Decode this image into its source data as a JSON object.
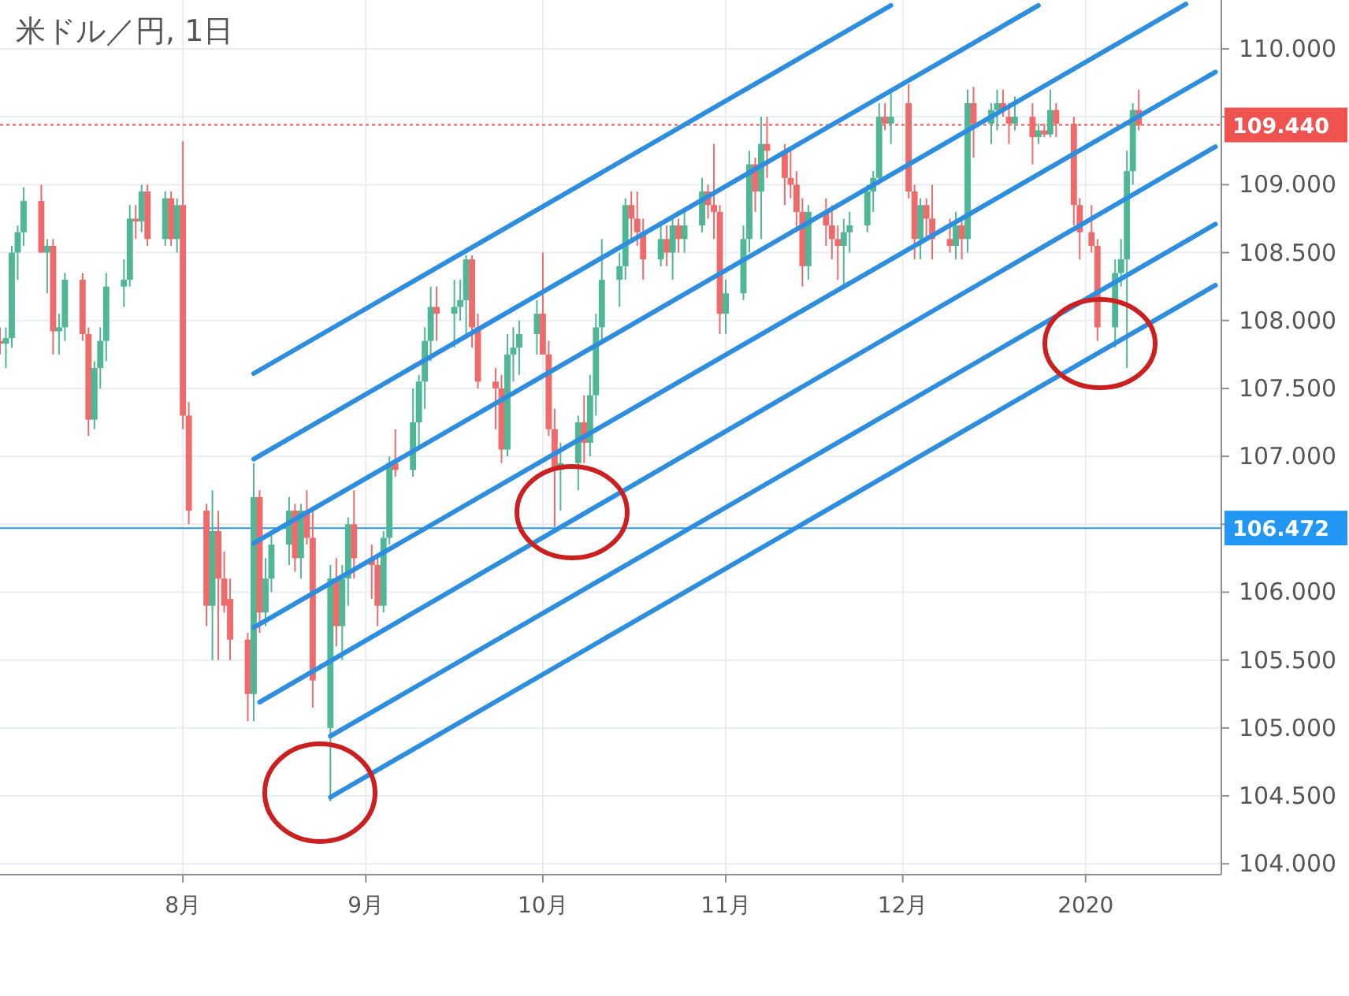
{
  "chart_data": {
    "type": "candlestick",
    "title": "米ドル／円, 1日",
    "x": [
      "2019-07-01",
      "2019-07-02",
      "2019-07-03",
      "2019-07-04",
      "2019-07-05",
      "2019-07-08",
      "2019-07-09",
      "2019-07-10",
      "2019-07-11",
      "2019-07-12",
      "2019-07-15",
      "2019-07-16",
      "2019-07-17",
      "2019-07-18",
      "2019-07-19",
      "2019-07-22",
      "2019-07-23",
      "2019-07-24",
      "2019-07-25",
      "2019-07-26",
      "2019-07-29",
      "2019-07-30",
      "2019-07-31",
      "2019-08-01",
      "2019-08-02",
      "2019-08-05",
      "2019-08-06",
      "2019-08-07",
      "2019-08-08",
      "2019-08-09",
      "2019-08-12",
      "2019-08-13",
      "2019-08-14",
      "2019-08-15",
      "2019-08-16",
      "2019-08-19",
      "2019-08-20",
      "2019-08-21",
      "2019-08-22",
      "2019-08-23",
      "2019-08-26",
      "2019-08-27",
      "2019-08-28",
      "2019-08-29",
      "2019-08-30",
      "2019-09-02",
      "2019-09-03",
      "2019-09-04",
      "2019-09-05",
      "2019-09-06",
      "2019-09-09",
      "2019-09-10",
      "2019-09-11",
      "2019-09-12",
      "2019-09-13",
      "2019-09-16",
      "2019-09-17",
      "2019-09-18",
      "2019-09-19",
      "2019-09-20",
      "2019-09-23",
      "2019-09-24",
      "2019-09-25",
      "2019-09-26",
      "2019-09-27",
      "2019-09-30",
      "2019-10-01",
      "2019-10-02",
      "2019-10-03",
      "2019-10-04",
      "2019-10-07",
      "2019-10-08",
      "2019-10-09",
      "2019-10-10",
      "2019-10-11",
      "2019-10-14",
      "2019-10-15",
      "2019-10-16",
      "2019-10-17",
      "2019-10-18",
      "2019-10-21",
      "2019-10-22",
      "2019-10-23",
      "2019-10-24",
      "2019-10-25",
      "2019-10-28",
      "2019-10-29",
      "2019-10-30",
      "2019-10-31",
      "2019-11-01",
      "2019-11-04",
      "2019-11-05",
      "2019-11-06",
      "2019-11-07",
      "2019-11-08",
      "2019-11-11",
      "2019-11-12",
      "2019-11-13",
      "2019-11-14",
      "2019-11-15",
      "2019-11-18",
      "2019-11-19",
      "2019-11-20",
      "2019-11-21",
      "2019-11-22",
      "2019-11-25",
      "2019-11-26",
      "2019-11-27",
      "2019-11-28",
      "2019-11-29",
      "2019-12-02",
      "2019-12-03",
      "2019-12-04",
      "2019-12-05",
      "2019-12-06",
      "2019-12-09",
      "2019-12-10",
      "2019-12-11",
      "2019-12-12",
      "2019-12-13",
      "2019-12-16",
      "2019-12-17",
      "2019-12-18",
      "2019-12-19",
      "2019-12-20",
      "2019-12-23",
      "2019-12-24",
      "2019-12-25",
      "2019-12-26",
      "2019-12-27",
      "2019-12-30",
      "2019-12-31",
      "2020-01-02",
      "2020-01-03",
      "2020-01-06",
      "2020-01-07",
      "2020-01-08",
      "2020-01-09",
      "2020-01-10"
    ],
    "ohlc": [
      [
        107.85,
        107.95,
        107.75,
        107.83
      ],
      [
        107.83,
        107.95,
        107.65,
        107.87
      ],
      [
        107.87,
        108.55,
        107.8,
        108.5
      ],
      [
        108.5,
        108.7,
        108.3,
        108.65
      ],
      [
        108.65,
        108.98,
        108.55,
        108.88
      ],
      [
        108.88,
        109.0,
        108.5,
        108.5
      ],
      [
        108.5,
        108.6,
        108.2,
        108.55
      ],
      [
        108.55,
        108.6,
        107.75,
        107.92
      ],
      [
        107.92,
        108.05,
        107.75,
        107.95
      ],
      [
        107.95,
        108.35,
        107.85,
        108.3
      ],
      [
        108.3,
        108.35,
        107.85,
        107.9
      ],
      [
        107.9,
        107.95,
        107.15,
        107.27
      ],
      [
        107.27,
        107.7,
        107.2,
        107.65
      ],
      [
        107.65,
        107.95,
        107.5,
        107.85
      ],
      [
        107.85,
        108.35,
        107.7,
        108.25
      ],
      [
        108.25,
        108.45,
        108.1,
        108.3
      ],
      [
        108.3,
        108.85,
        108.25,
        108.75
      ],
      [
        108.75,
        108.85,
        108.6,
        108.73
      ],
      [
        108.73,
        109.0,
        108.65,
        108.95
      ],
      [
        108.95,
        109.0,
        108.55,
        108.6
      ],
      [
        108.6,
        108.95,
        108.55,
        108.9
      ],
      [
        108.9,
        108.95,
        108.55,
        108.6
      ],
      [
        108.6,
        108.9,
        108.5,
        108.85
      ],
      [
        108.85,
        109.32,
        107.2,
        107.3
      ],
      [
        107.3,
        107.4,
        106.5,
        106.6
      ],
      [
        106.6,
        106.65,
        105.75,
        105.9
      ],
      [
        105.9,
        106.75,
        105.5,
        106.45
      ],
      [
        106.45,
        106.6,
        105.5,
        106.1
      ],
      [
        106.1,
        106.3,
        105.85,
        105.9
      ],
      [
        105.95,
        106.1,
        105.5,
        105.65
      ],
      [
        105.65,
        105.7,
        105.05,
        105.25
      ],
      [
        105.25,
        106.95,
        105.05,
        106.7
      ],
      [
        106.7,
        106.75,
        105.7,
        105.85
      ],
      [
        105.85,
        106.25,
        105.75,
        106.1
      ],
      [
        106.1,
        106.45,
        106.0,
        106.35
      ],
      [
        106.35,
        106.7,
        106.2,
        106.6
      ],
      [
        106.6,
        106.65,
        106.15,
        106.25
      ],
      [
        106.25,
        106.65,
        106.1,
        106.6
      ],
      [
        106.6,
        106.75,
        106.35,
        106.4
      ],
      [
        106.4,
        106.6,
        105.15,
        105.35
      ],
      [
        105.0,
        106.2,
        104.46,
        106.1
      ],
      [
        106.1,
        106.25,
        105.6,
        105.75
      ],
      [
        105.75,
        106.2,
        105.5,
        106.1
      ],
      [
        106.1,
        106.55,
        105.9,
        106.5
      ],
      [
        106.5,
        106.75,
        106.1,
        106.25
      ],
      [
        106.25,
        106.35,
        105.95,
        106.2
      ],
      [
        106.2,
        106.25,
        105.75,
        105.9
      ],
      [
        105.9,
        106.45,
        105.85,
        106.4
      ],
      [
        106.4,
        107.0,
        106.35,
        106.95
      ],
      [
        106.95,
        107.2,
        106.85,
        106.9
      ],
      [
        106.9,
        107.5,
        106.85,
        107.25
      ],
      [
        107.25,
        107.6,
        107.05,
        107.55
      ],
      [
        107.55,
        107.95,
        107.35,
        107.85
      ],
      [
        107.85,
        108.25,
        107.7,
        108.1
      ],
      [
        108.1,
        108.25,
        107.85,
        108.05
      ],
      [
        108.05,
        108.3,
        107.8,
        108.1
      ],
      [
        108.1,
        108.3,
        108.0,
        108.15
      ],
      [
        108.15,
        108.48,
        107.9,
        108.45
      ],
      [
        108.45,
        108.48,
        107.8,
        107.95
      ],
      [
        107.95,
        108.05,
        107.5,
        107.55
      ],
      [
        107.55,
        107.65,
        107.2,
        107.5
      ],
      [
        107.5,
        107.6,
        106.95,
        107.05
      ],
      [
        107.05,
        107.9,
        107.0,
        107.75
      ],
      [
        107.75,
        107.95,
        107.55,
        107.8
      ],
      [
        107.8,
        108.0,
        107.6,
        107.9
      ],
      [
        107.9,
        108.15,
        107.75,
        108.05
      ],
      [
        108.05,
        108.5,
        107.75,
        107.75
      ],
      [
        107.75,
        107.85,
        107.15,
        107.2
      ],
      [
        107.2,
        107.35,
        106.48,
        106.9
      ],
      [
        106.9,
        107.1,
        106.6,
        106.95
      ],
      [
        106.95,
        107.3,
        106.75,
        107.25
      ],
      [
        107.25,
        107.45,
        106.95,
        107.1
      ],
      [
        107.1,
        107.6,
        107.0,
        107.45
      ],
      [
        107.45,
        108.05,
        107.3,
        107.95
      ],
      [
        107.95,
        108.6,
        107.85,
        108.3
      ],
      [
        108.3,
        108.5,
        108.1,
        108.4
      ],
      [
        108.4,
        108.9,
        108.3,
        108.85
      ],
      [
        108.85,
        108.95,
        108.6,
        108.75
      ],
      [
        108.75,
        108.95,
        108.55,
        108.65
      ],
      [
        108.65,
        108.75,
        108.3,
        108.45
      ],
      [
        108.45,
        108.7,
        108.4,
        108.6
      ],
      [
        108.6,
        108.7,
        108.4,
        108.5
      ],
      [
        108.5,
        108.75,
        108.3,
        108.7
      ],
      [
        108.7,
        108.75,
        108.5,
        108.6
      ],
      [
        108.6,
        108.8,
        108.5,
        108.7
      ],
      [
        108.7,
        109.05,
        108.65,
        108.95
      ],
      [
        108.95,
        109.0,
        108.75,
        108.85
      ],
      [
        108.85,
        109.3,
        108.6,
        108.8
      ],
      [
        108.8,
        108.85,
        107.9,
        108.05
      ],
      [
        108.05,
        108.3,
        107.9,
        108.2
      ],
      [
        108.2,
        108.7,
        108.15,
        108.6
      ],
      [
        108.6,
        109.25,
        108.5,
        109.15
      ],
      [
        109.15,
        109.2,
        108.8,
        108.95
      ],
      [
        108.95,
        109.5,
        108.6,
        109.3
      ],
      [
        109.3,
        109.5,
        109.05,
        109.25
      ],
      [
        109.25,
        109.3,
        108.85,
        109.05
      ],
      [
        109.05,
        109.25,
        108.9,
        109.0
      ],
      [
        109.0,
        109.1,
        108.65,
        108.8
      ],
      [
        108.8,
        108.9,
        108.25,
        108.4
      ],
      [
        108.4,
        108.85,
        108.3,
        108.8
      ],
      [
        108.8,
        108.9,
        108.55,
        108.7
      ],
      [
        108.7,
        108.85,
        108.45,
        108.6
      ],
      [
        108.6,
        108.7,
        108.3,
        108.55
      ],
      [
        108.55,
        108.75,
        108.25,
        108.65
      ],
      [
        108.65,
        108.8,
        108.5,
        108.7
      ],
      [
        108.7,
        109.0,
        108.65,
        108.95
      ],
      [
        108.95,
        109.1,
        108.8,
        109.05
      ],
      [
        109.05,
        109.6,
        109.0,
        109.5
      ],
      [
        109.5,
        109.6,
        109.4,
        109.45
      ],
      [
        109.45,
        109.7,
        109.3,
        109.5
      ],
      [
        109.6,
        109.74,
        108.9,
        108.95
      ],
      [
        108.95,
        109.0,
        108.45,
        108.6
      ],
      [
        108.6,
        108.9,
        108.45,
        108.85
      ],
      [
        108.85,
        108.9,
        108.6,
        108.75
      ],
      [
        108.75,
        109.0,
        108.45,
        108.6
      ],
      [
        108.6,
        108.75,
        108.5,
        108.55
      ],
      [
        108.55,
        108.8,
        108.45,
        108.7
      ],
      [
        108.7,
        108.75,
        108.45,
        108.6
      ],
      [
        108.6,
        109.7,
        108.5,
        109.6
      ],
      [
        109.6,
        109.72,
        109.2,
        109.45
      ],
      [
        109.45,
        109.6,
        109.3,
        109.55
      ],
      [
        109.55,
        109.7,
        109.4,
        109.6
      ],
      [
        109.6,
        109.7,
        109.5,
        109.55
      ],
      [
        109.5,
        109.6,
        109.3,
        109.45
      ],
      [
        109.45,
        109.65,
        109.4,
        109.5
      ],
      [
        109.5,
        109.6,
        109.15,
        109.35
      ],
      [
        109.35,
        109.45,
        109.3,
        109.4
      ],
      [
        109.4,
        109.45,
        109.35,
        109.37
      ],
      [
        109.37,
        109.7,
        109.35,
        109.55
      ],
      [
        109.55,
        109.6,
        109.35,
        109.45
      ],
      [
        109.45,
        109.5,
        108.7,
        108.85
      ],
      [
        108.85,
        108.9,
        108.45,
        108.65
      ],
      [
        108.65,
        108.85,
        108.5,
        108.55
      ],
      [
        108.55,
        108.6,
        107.85,
        107.95
      ],
      [
        107.95,
        108.45,
        107.8,
        108.35
      ],
      [
        108.35,
        108.6,
        108.25,
        108.45
      ],
      [
        108.45,
        109.25,
        107.65,
        109.1
      ],
      [
        109.1,
        109.6,
        109.0,
        109.55
      ],
      [
        109.55,
        109.7,
        109.4,
        109.44
      ]
    ],
    "series": [
      {
        "type": "line",
        "color": "#2d8ee0",
        "x": [
          "2019-08-13",
          "2019-11-29"
        ],
        "values": [
          107.61,
          110.32
        ]
      },
      {
        "type": "line",
        "color": "#2d8ee0",
        "x": [
          "2019-08-13",
          "2019-12-24"
        ],
        "values": [
          106.98,
          110.32
        ]
      },
      {
        "type": "line",
        "color": "#2d8ee0",
        "x": [
          "2019-08-13",
          "2020-01-18"
        ],
        "values": [
          106.36,
          110.33
        ]
      },
      {
        "type": "line",
        "color": "#2d8ee0",
        "x": [
          "2019-08-13",
          "2020-01-23"
        ],
        "values": [
          105.74,
          109.83
        ]
      },
      {
        "type": "line",
        "color": "#2d8ee0",
        "x": [
          "2019-08-14",
          "2020-01-23"
        ],
        "values": [
          105.19,
          109.28
        ]
      },
      {
        "type": "line",
        "color": "#2d8ee0",
        "x": [
          "2019-08-26",
          "2020-01-23"
        ],
        "values": [
          104.94,
          108.71
        ]
      },
      {
        "type": "line",
        "color": "#2d8ee0",
        "x": [
          "2019-08-26",
          "2020-01-23"
        ],
        "values": [
          104.49,
          108.26
        ]
      }
    ],
    "xlim": [
      "2019-07-01",
      "2020-01-24"
    ],
    "xticks": [
      {
        "value": "2019-08-01",
        "label": "8月"
      },
      {
        "value": "2019-09-01",
        "label": "9月"
      },
      {
        "value": "2019-10-01",
        "label": "10月"
      },
      {
        "value": "2019-11-01",
        "label": "11月"
      },
      {
        "value": "2019-12-01",
        "label": "12月"
      },
      {
        "value": "2020-01-01",
        "label": "2020"
      }
    ],
    "ylim": [
      103.92,
      110.36
    ],
    "yticks": [
      {
        "value": 104,
        "label": "104.000"
      },
      {
        "value": 104.5,
        "label": "104.500"
      },
      {
        "value": 105,
        "label": "105.000"
      },
      {
        "value": 105.5,
        "label": "105.500"
      },
      {
        "value": 106,
        "label": "106.000"
      },
      {
        "value": 106.5,
        "label": null
      },
      {
        "value": 107,
        "label": "107.000"
      },
      {
        "value": 107.5,
        "label": "107.500"
      },
      {
        "value": 108,
        "label": "108.000"
      },
      {
        "value": 108.5,
        "label": "108.500"
      },
      {
        "value": 109,
        "label": "109.000"
      },
      {
        "value": 109.5,
        "label": null
      },
      {
        "value": 110,
        "label": "110.000"
      }
    ],
    "grid": true,
    "ref_lines": [
      {
        "axis": "y",
        "value": 109.44,
        "label": "109.440",
        "color": "#ef5350",
        "line_style": "dotted"
      },
      {
        "axis": "y",
        "value": 106.472,
        "label": "106.472",
        "color": "#2196f3",
        "line_style": "solid"
      }
    ]
  }
}
